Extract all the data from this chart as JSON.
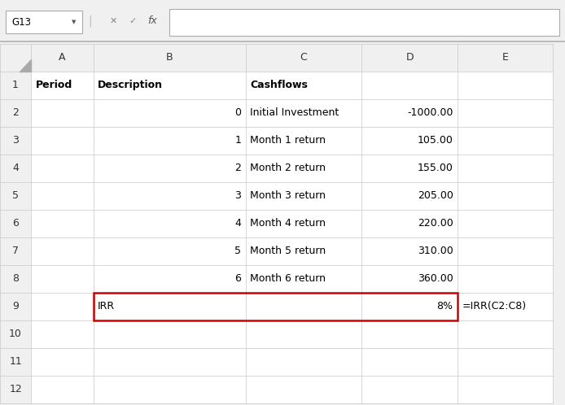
{
  "figsize": [
    6.94,
    4.98
  ],
  "dpi": 100,
  "bg_color": "#f0f0f0",
  "cell_name_box": "G13",
  "header_text_color": "#333333",
  "col_headers": [
    "A",
    "B",
    "C",
    "D",
    "E"
  ],
  "row_headers": [
    "1",
    "2",
    "3",
    "4",
    "5",
    "6",
    "7",
    "8",
    "9",
    "10",
    "11",
    "12"
  ],
  "grid_color": "#c8c8c8",
  "highlight_color": "#cc0000",
  "data": [
    [
      "Period",
      "Description",
      "Cashflows",
      "",
      ""
    ],
    [
      "",
      "0",
      "Initial Investment",
      "-1000.00",
      ""
    ],
    [
      "",
      "1",
      "Month 1 return",
      "105.00",
      ""
    ],
    [
      "",
      "2",
      "Month 2 return",
      "155.00",
      ""
    ],
    [
      "",
      "3",
      "Month 3 return",
      "205.00",
      ""
    ],
    [
      "",
      "4",
      "Month 4 return",
      "220.00",
      ""
    ],
    [
      "",
      "5",
      "Month 5 return",
      "310.00",
      ""
    ],
    [
      "",
      "6",
      "Month 6 return",
      "360.00",
      ""
    ],
    [
      "",
      "IRR",
      "",
      "8%",
      "=IRR(C2:C8)"
    ],
    [
      "",
      "",
      "",
      "",
      ""
    ],
    [
      "",
      "",
      "",
      "",
      ""
    ],
    [
      "",
      "",
      "",
      "",
      ""
    ]
  ],
  "font_size": 9,
  "header_font_size": 9
}
